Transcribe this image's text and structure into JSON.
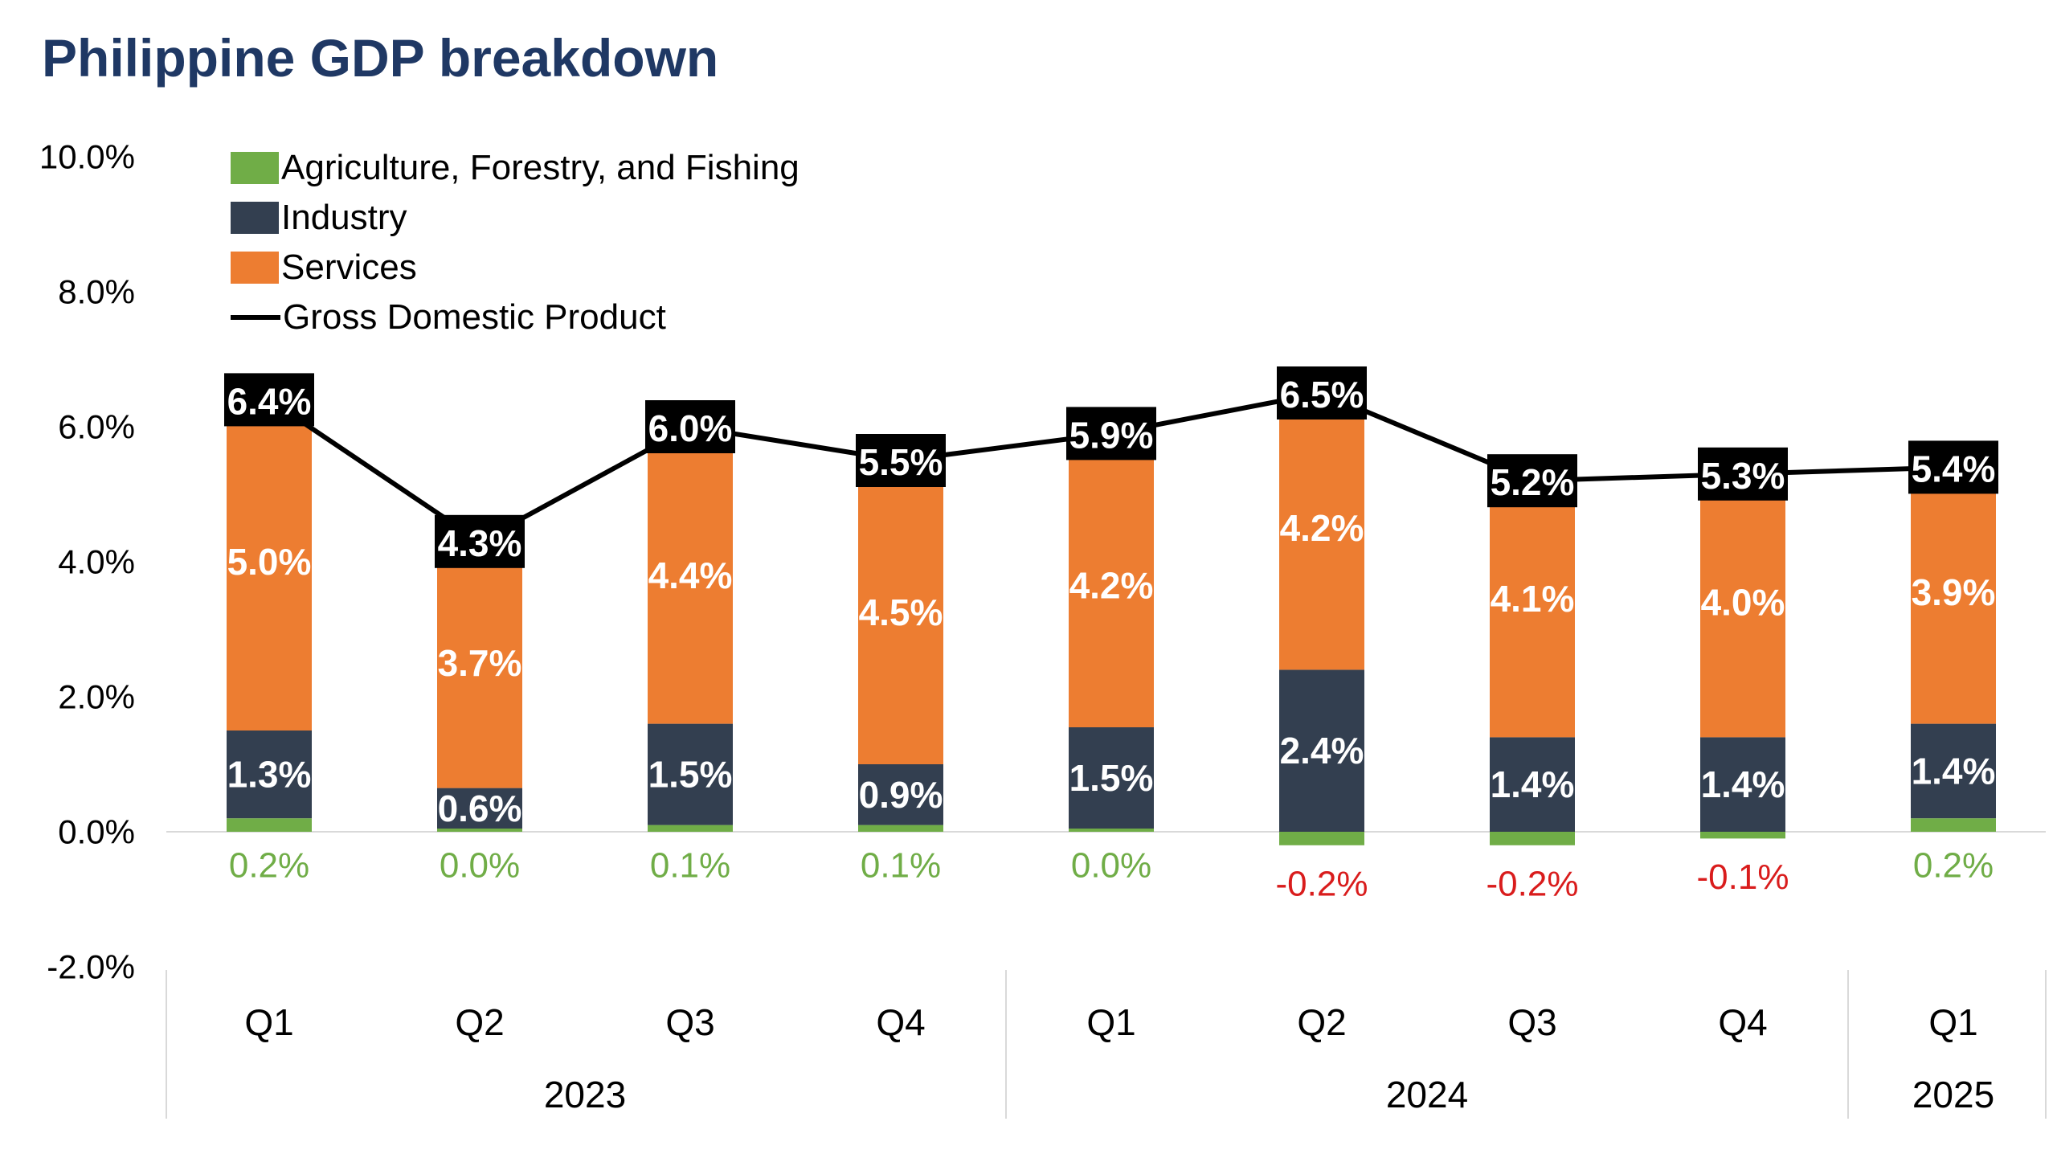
{
  "title": {
    "text": "Philippine GDP breakdown",
    "color": "#1F3864"
  },
  "legend": {
    "items": [
      {
        "label": "Agriculture, Forestry, and Fishing",
        "marker": "square",
        "color": "#70AD47"
      },
      {
        "label": "Industry",
        "marker": "square",
        "color": "#333F50"
      },
      {
        "label": "Services",
        "marker": "square",
        "color": "#ED7D31"
      },
      {
        "label": "Gross Domestic Product",
        "marker": "line",
        "color": "#000000"
      }
    ]
  },
  "chart_data": {
    "type": "bar",
    "subtype": "stacked-bar-with-line",
    "categories": [
      "Q1",
      "Q2",
      "Q3",
      "Q4",
      "Q1",
      "Q2",
      "Q3",
      "Q4",
      "Q1"
    ],
    "year_groups": [
      {
        "label": "2023",
        "start": 0,
        "end": 3
      },
      {
        "label": "2024",
        "start": 4,
        "end": 7
      },
      {
        "label": "2025",
        "start": 8,
        "end": 8
      }
    ],
    "series": [
      {
        "name": "Agriculture, Forestry, and Fishing",
        "color": "#70AD47",
        "values": [
          0.2,
          0.0,
          0.1,
          0.1,
          0.0,
          -0.2,
          -0.2,
          -0.1,
          0.2
        ]
      },
      {
        "name": "Industry",
        "color": "#333F50",
        "values": [
          1.3,
          0.6,
          1.5,
          0.9,
          1.5,
          2.4,
          1.4,
          1.4,
          1.4
        ]
      },
      {
        "name": "Services",
        "color": "#ED7D31",
        "values": [
          5.0,
          3.7,
          4.4,
          4.5,
          4.2,
          4.2,
          4.1,
          4.0,
          3.9
        ]
      }
    ],
    "line_series": {
      "name": "Gross Domestic Product",
      "color": "#000000",
      "values": [
        6.4,
        4.3,
        6.0,
        5.5,
        5.9,
        6.5,
        5.2,
        5.3,
        5.4
      ]
    },
    "y_axis": {
      "tick_labels": [
        "10.0%",
        "8.0%",
        "6.0%",
        "4.0%",
        "2.0%",
        "0.0%",
        "-2.0%"
      ],
      "tick_values": [
        10,
        8,
        6,
        4,
        2,
        0,
        -2
      ],
      "min": -2,
      "max": 10,
      "grid": false
    },
    "colors": {
      "agri_positive_label": "#70AD47",
      "agri_negative_label": "#D91C1C",
      "segment_label": "#FFFFFF",
      "gdp_label_bg": "#000000",
      "gdp_label_text": "#FFFFFF",
      "axis_line": "#D9D9D9",
      "tick_label": "#000000"
    },
    "legend_position": "top-left-inside",
    "label_format": "0.0%"
  }
}
